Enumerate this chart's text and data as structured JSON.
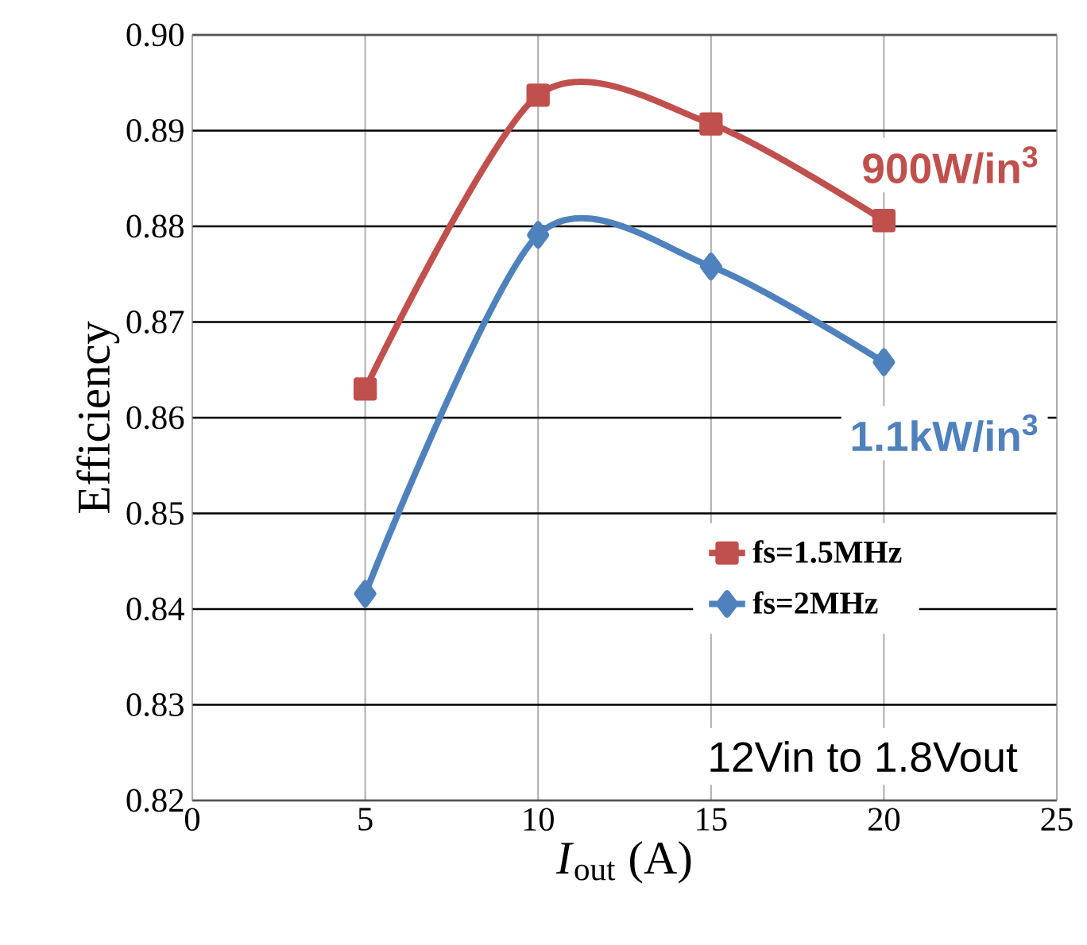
{
  "chart_data": {
    "type": "line",
    "xlabel": "*I*$_{out}$ (A)",
    "ylabel": "Efficiency",
    "x": [
      5,
      10,
      15,
      20
    ],
    "series": [
      {
        "name": "fs=1.5MHz",
        "color": "#c0504d",
        "marker": "square",
        "values": [
          0.863,
          0.8937,
          0.8907,
          0.8806
        ]
      },
      {
        "name": "fs=2MHz",
        "color": "#4f81bd",
        "marker": "diamond",
        "values": [
          0.8416,
          0.8791,
          0.8758,
          0.8658
        ]
      }
    ],
    "xlim": [
      0,
      25
    ],
    "xticks": [
      0,
      5,
      10,
      15,
      20,
      25
    ],
    "ylim": [
      0.82,
      0.9
    ],
    "yticks": [
      0.82,
      0.83,
      0.84,
      0.85,
      0.86,
      0.87,
      0.88,
      0.89,
      {
        "value": 0.9,
        "label": "0.90"
      }
    ],
    "grid": true,
    "legend": "bottom right",
    "annotations": [
      "900W/in$^{3}$",
      "1.1kW/in$^{3}$",
      "12Vin to 1.8Vout"
    ]
  }
}
